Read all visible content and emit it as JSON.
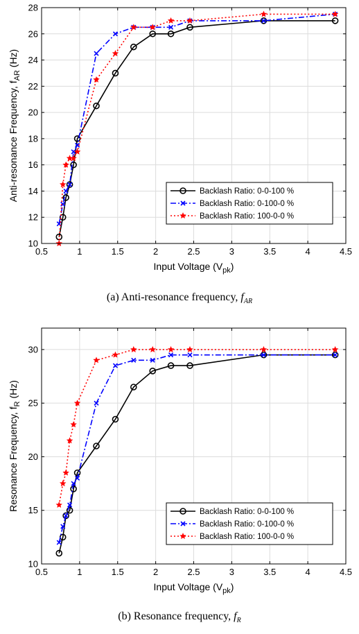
{
  "chart_data": [
    {
      "type": "line",
      "id": "a",
      "caption": "(a) Anti-resonance frequency,",
      "caption_symbol": "f",
      "caption_subscript": "AR",
      "xlabel": "Input Voltage (V",
      "xlabel_sub": "pk",
      "xlabel_end": ")",
      "ylabel": "Anti-resonance Frequency, f",
      "ylabel_sub": "AR",
      "ylabel_end": " (Hz)",
      "xlim": [
        0.5,
        4.5
      ],
      "ylim": [
        10,
        28
      ],
      "xticks": [
        0.5,
        1,
        1.5,
        2,
        2.5,
        3,
        3.5,
        4,
        4.5
      ],
      "xtick_labels": [
        "0.5",
        "1",
        "1.5",
        "2",
        "2.5",
        "3",
        "3.5",
        "4",
        "4.5"
      ],
      "yticks": [
        10,
        12,
        14,
        16,
        18,
        20,
        22,
        24,
        26,
        28
      ],
      "ytick_labels": [
        "10",
        "12",
        "14",
        "16",
        "18",
        "20",
        "22",
        "24",
        "26",
        "28"
      ],
      "grid": true,
      "legend_position": "lower-right",
      "series": [
        {
          "name": "Backlash Ratio: 0-0-100 %",
          "color": "#000000",
          "style": "solid",
          "marker": "circle",
          "x": [
            0.73,
            0.78,
            0.82,
            0.87,
            0.92,
            0.97,
            1.22,
            1.47,
            1.71,
            1.96,
            2.2,
            2.45,
            3.42,
            4.36
          ],
          "y": [
            10.5,
            12,
            13.5,
            14.5,
            16,
            18,
            20.5,
            23,
            25,
            26,
            26,
            26.5,
            27,
            27
          ]
        },
        {
          "name": "Backlash Ratio: 0-100-0 %",
          "color": "#0000ff",
          "style": "dashdot",
          "marker": "x",
          "x": [
            0.73,
            0.78,
            0.82,
            0.87,
            0.92,
            0.97,
            1.22,
            1.47,
            1.71,
            1.96,
            2.2,
            2.45,
            3.42,
            4.36
          ],
          "y": [
            11.5,
            13,
            14,
            14.5,
            17,
            17.5,
            24.5,
            26,
            26.5,
            26.5,
            26.5,
            27,
            27,
            27.5
          ]
        },
        {
          "name": "Backlash Ratio: 100-0-0 %",
          "color": "#ff0000",
          "style": "dotted",
          "marker": "star",
          "x": [
            0.73,
            0.78,
            0.82,
            0.87,
            0.92,
            0.97,
            1.22,
            1.47,
            1.71,
            1.96,
            2.2,
            2.45,
            3.42,
            4.36
          ],
          "y": [
            10,
            14.5,
            16,
            16.5,
            16.5,
            17,
            22.5,
            24.5,
            26.5,
            26.5,
            27,
            27,
            27.5,
            27.5
          ]
        }
      ]
    },
    {
      "type": "line",
      "id": "b",
      "caption": "(b) Resonance frequency,",
      "caption_symbol": "f",
      "caption_subscript": "R",
      "xlabel": "Input Voltage (V",
      "xlabel_sub": "pk",
      "xlabel_end": ")",
      "ylabel": "Resonance Frequency, f",
      "ylabel_sub": "R",
      "ylabel_end": " (Hz)",
      "xlim": [
        0.5,
        4.5
      ],
      "ylim": [
        10,
        32
      ],
      "xticks": [
        0.5,
        1,
        1.5,
        2,
        2.5,
        3,
        3.5,
        4,
        4.5
      ],
      "xtick_labels": [
        "0.5",
        "1",
        "1.5",
        "2",
        "2.5",
        "3",
        "3.5",
        "4",
        "4.5"
      ],
      "yticks": [
        10,
        15,
        20,
        25,
        30
      ],
      "ytick_labels": [
        "10",
        "15",
        "20",
        "25",
        "30"
      ],
      "grid": true,
      "legend_position": "lower-right",
      "series": [
        {
          "name": "Backlash Ratio: 0-0-100 %",
          "color": "#000000",
          "style": "solid",
          "marker": "circle",
          "x": [
            0.73,
            0.78,
            0.82,
            0.87,
            0.92,
            0.97,
            1.22,
            1.47,
            1.71,
            1.96,
            2.2,
            2.45,
            3.42,
            4.36
          ],
          "y": [
            11,
            12.5,
            14.5,
            15,
            17,
            18.5,
            21,
            23.5,
            26.5,
            28,
            28.5,
            28.5,
            29.5,
            29.5
          ]
        },
        {
          "name": "Backlash Ratio: 0-100-0 %",
          "color": "#0000ff",
          "style": "dashdot",
          "marker": "x",
          "x": [
            0.73,
            0.78,
            0.82,
            0.87,
            0.92,
            0.97,
            1.22,
            1.47,
            1.71,
            1.96,
            2.2,
            2.45,
            3.42,
            4.36
          ],
          "y": [
            12,
            13.5,
            14.5,
            15.5,
            17.5,
            18,
            25,
            28.5,
            29,
            29,
            29.5,
            29.5,
            29.5,
            29.5
          ]
        },
        {
          "name": "Backlash Ratio: 100-0-0 %",
          "color": "#ff0000",
          "style": "dotted",
          "marker": "star",
          "x": [
            0.73,
            0.78,
            0.82,
            0.87,
            0.92,
            0.97,
            1.22,
            1.47,
            1.71,
            1.96,
            2.2,
            2.45,
            3.42,
            4.36
          ],
          "y": [
            15.5,
            17.5,
            18.5,
            21.5,
            23,
            25,
            29,
            29.5,
            30,
            30,
            30,
            30,
            30,
            30
          ]
        }
      ]
    }
  ]
}
